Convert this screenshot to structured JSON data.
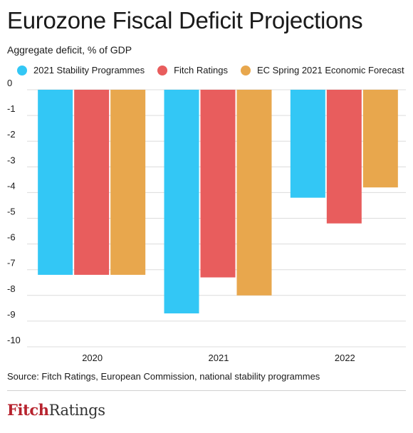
{
  "title": "Eurozone Fiscal Deficit Projections",
  "subtitle": "Aggregate deficit, % of GDP",
  "source": "Source: Fitch Ratings, European Commission, national stability programmes",
  "logo": {
    "part1": "Fitch",
    "part2": "Ratings"
  },
  "chart_data": {
    "type": "bar",
    "categories": [
      "2020",
      "2021",
      "2022"
    ],
    "series": [
      {
        "name": "2021 Stability Programmes",
        "values": [
          -7.2,
          -8.7,
          -4.2
        ],
        "color": "#33c7f5"
      },
      {
        "name": "Fitch Ratings",
        "values": [
          -7.2,
          -7.3,
          -5.2
        ],
        "color": "#e85d5d"
      },
      {
        "name": "EC Spring 2021 Economic Forecast",
        "values": [
          -7.2,
          -8.0,
          -3.8
        ],
        "color": "#e8a74d"
      }
    ],
    "yticks": [
      "0",
      "-1",
      "-2",
      "-3",
      "-4",
      "-5",
      "-6",
      "-7",
      "-8",
      "-9",
      "-10"
    ],
    "ylim": [
      -10,
      0
    ],
    "grid": true,
    "legend": "top"
  }
}
